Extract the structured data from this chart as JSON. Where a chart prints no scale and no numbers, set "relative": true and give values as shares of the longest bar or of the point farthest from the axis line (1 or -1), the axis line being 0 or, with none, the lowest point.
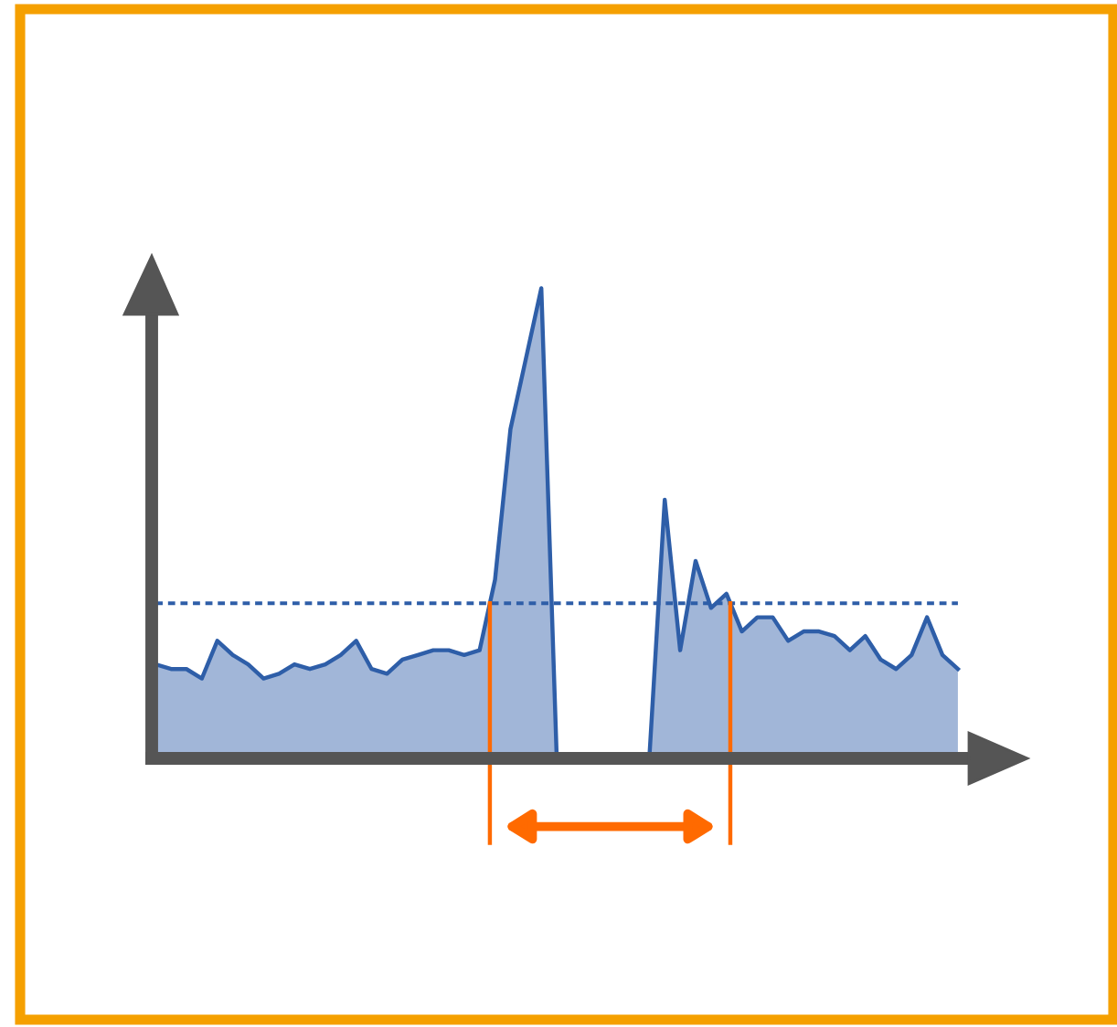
{
  "chart_data": {
    "type": "area",
    "relative": true,
    "categories": [
      null,
      null,
      null,
      null,
      null,
      null,
      null,
      null,
      null,
      null,
      null,
      null,
      null,
      null,
      null,
      null,
      null,
      null,
      null,
      null,
      null,
      null,
      null,
      null,
      null,
      null,
      null,
      null,
      null,
      null,
      null,
      null,
      null,
      null,
      null,
      null,
      null,
      null,
      null,
      null,
      null,
      null,
      null,
      null,
      null,
      null,
      null,
      null,
      null,
      null,
      null,
      null,
      null
    ],
    "series": [
      {
        "color": "#2e5ea8",
        "values": [
          0.2,
          0.19,
          0.19,
          0.17,
          0.25,
          0.22,
          0.2,
          0.17,
          0.18,
          0.2,
          0.19,
          0.2,
          0.22,
          0.25,
          0.19,
          0.18,
          0.21,
          0.22,
          0.23,
          0.23,
          0.22,
          0.23,
          0.38,
          0.7,
          0.85,
          1,
          0,
          0,
          0,
          0,
          0,
          0,
          0,
          0.55,
          0.23,
          0.42,
          0.32,
          0.35,
          0.27,
          0.3,
          0.3,
          0.25,
          0.27,
          0.27,
          0.26,
          0.23,
          0.26,
          0.21,
          0.19,
          0.22,
          0.3,
          0.22,
          0.19
        ]
      }
    ],
    "ref_lines": [
      {
        "axis": "y",
        "value": 0.33,
        "color": "#2e5ea8",
        "line_style": "dotted"
      }
    ]
  }
}
